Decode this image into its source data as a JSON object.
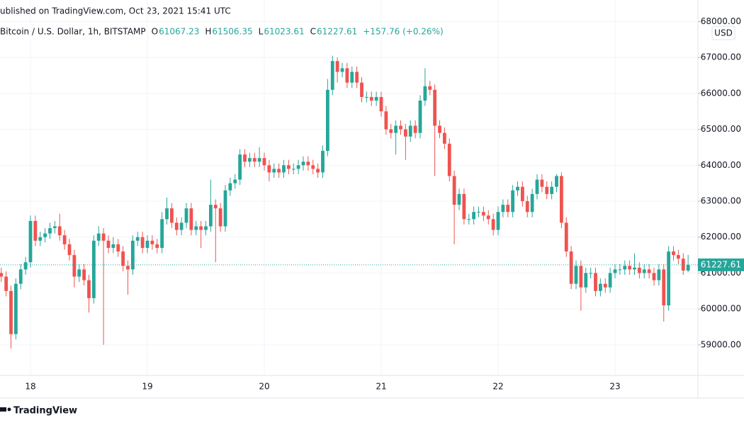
{
  "header": {
    "published": "ublished on TradingView.com, Oct 23, 2021 15:41 UTC"
  },
  "footer": {
    "brand": "TradingView"
  },
  "chart_data": {
    "type": "candlestick",
    "title": "Bitcoin / U.S. Dollar, 1h, BITSTAMP",
    "ohlc_letters": [
      "O",
      "H",
      "L",
      "C"
    ],
    "change_label": "+157.76 (+0.26%)",
    "currency": "USD",
    "up_color": "#26a69a",
    "down_color": "#ef5350",
    "grid": true,
    "ylim": [
      58150,
      68600
    ],
    "yticks": [
      {
        "value": 59000,
        "label": "59000.00"
      },
      {
        "value": 60000,
        "label": "60000.00"
      },
      {
        "value": 61000,
        "label": "61000.00"
      },
      {
        "value": 62000,
        "label": "62000.00"
      },
      {
        "value": 63000,
        "label": "63000.00"
      },
      {
        "value": 64000,
        "label": "64000.00"
      },
      {
        "value": 65000,
        "label": "65000.00"
      },
      {
        "value": 66000,
        "label": "66000.00"
      },
      {
        "value": 67000,
        "label": "67000.00"
      },
      {
        "value": 68000,
        "label": "68000.00"
      }
    ],
    "categories": [
      null,
      null,
      null,
      null,
      null,
      null,
      "18",
      null,
      null,
      null,
      null,
      null,
      null,
      null,
      null,
      null,
      null,
      null,
      null,
      null,
      null,
      null,
      null,
      null,
      null,
      null,
      null,
      null,
      null,
      null,
      "19",
      null,
      null,
      null,
      null,
      null,
      null,
      null,
      null,
      null,
      null,
      null,
      null,
      null,
      null,
      null,
      null,
      null,
      null,
      null,
      null,
      null,
      null,
      null,
      "20",
      null,
      null,
      null,
      null,
      null,
      null,
      null,
      null,
      null,
      null,
      null,
      null,
      null,
      null,
      null,
      null,
      null,
      null,
      null,
      null,
      null,
      null,
      null,
      "21",
      null,
      null,
      null,
      null,
      null,
      null,
      null,
      null,
      null,
      null,
      null,
      null,
      null,
      null,
      null,
      null,
      null,
      null,
      null,
      null,
      null,
      null,
      null,
      "22",
      null,
      null,
      null,
      null,
      null,
      null,
      null,
      null,
      null,
      null,
      null,
      null,
      null,
      null,
      null,
      null,
      null,
      null,
      null,
      null,
      null,
      null,
      null,
      "23",
      null,
      null,
      null,
      null,
      null,
      null,
      null,
      null,
      null,
      null,
      null,
      null,
      null,
      null,
      null
    ],
    "series": {
      "open": [
        61000,
        60900,
        60500,
        59300,
        60700,
        61100,
        61300,
        62450,
        61900,
        62000,
        62100,
        62250,
        62300,
        62050,
        61800,
        61500,
        60900,
        61100,
        60800,
        60300,
        61900,
        62100,
        61900,
        61700,
        61800,
        61600,
        61200,
        61100,
        61900,
        62000,
        61700,
        61900,
        61800,
        61700,
        62500,
        62800,
        62400,
        62200,
        62400,
        62800,
        62200,
        62300,
        62200,
        62300,
        62900,
        62800,
        62300,
        63300,
        63500,
        63600,
        64300,
        64100,
        64200,
        64100,
        64200,
        64000,
        63800,
        63900,
        63800,
        64000,
        63900,
        63900,
        64000,
        64100,
        64000,
        63900,
        63800,
        64400,
        66100,
        66900,
        66600,
        66700,
        66300,
        66600,
        66300,
        65900,
        65900,
        65800,
        65900,
        65500,
        65000,
        64900,
        65100,
        65000,
        64800,
        65100,
        64900,
        65800,
        66200,
        66100,
        65100,
        64900,
        64600,
        63700,
        62900,
        63200,
        62500,
        62500,
        62700,
        62700,
        62600,
        62500,
        62200,
        62700,
        62900,
        62700,
        63300,
        63400,
        63000,
        62700,
        63200,
        63600,
        63400,
        63200,
        63400,
        63700,
        62400,
        61600,
        60700,
        61200,
        60600,
        61000,
        61000,
        60500,
        60700,
        60600,
        61000,
        61100,
        61100,
        61200,
        61100,
        61150,
        61000,
        61100,
        61000,
        60800,
        61100,
        60100,
        61600,
        61500,
        61400,
        61067.23
      ],
      "high": [
        61150,
        61050,
        60650,
        60850,
        61250,
        61450,
        62600,
        62600,
        62150,
        62250,
        62400,
        62450,
        62650,
        62200,
        61950,
        61650,
        61250,
        61250,
        60950,
        62050,
        62300,
        62250,
        62050,
        62000,
        61950,
        61750,
        61350,
        62050,
        62150,
        62150,
        62050,
        62050,
        61950,
        62700,
        63100,
        62950,
        62550,
        62550,
        62950,
        62950,
        62450,
        62450,
        62450,
        63600,
        63050,
        62950,
        63450,
        63650,
        63750,
        64450,
        64450,
        64350,
        64350,
        64500,
        64350,
        64150,
        64050,
        64050,
        64150,
        64150,
        64050,
        64150,
        64250,
        64250,
        64150,
        64050,
        64550,
        66400,
        67050,
        67000,
        66850,
        66850,
        66750,
        66750,
        66450,
        66050,
        66050,
        66050,
        66050,
        65650,
        65150,
        65250,
        65250,
        65150,
        65250,
        65250,
        65950,
        66700,
        66350,
        66250,
        65250,
        65050,
        64750,
        63850,
        63350,
        63350,
        62650,
        62850,
        62850,
        62850,
        62750,
        62650,
        62850,
        63050,
        63050,
        63450,
        63550,
        63550,
        63150,
        63350,
        63750,
        63750,
        63550,
        63550,
        63750,
        63800,
        62550,
        61750,
        61350,
        61350,
        61150,
        61150,
        61150,
        60850,
        60850,
        61150,
        61250,
        61250,
        61350,
        61350,
        61550,
        61300,
        61250,
        61250,
        61150,
        61250,
        61250,
        61750,
        61750,
        61650,
        61550,
        61506.35
      ],
      "low": [
        60750,
        60350,
        58900,
        59150,
        60550,
        60950,
        61150,
        61750,
        61750,
        61850,
        61950,
        62100,
        61900,
        61650,
        61350,
        60600,
        60750,
        60650,
        59900,
        60150,
        61750,
        59000,
        61550,
        61550,
        61450,
        61050,
        60400,
        60950,
        61750,
        61550,
        61550,
        61650,
        61550,
        61550,
        62350,
        62250,
        62050,
        62050,
        62250,
        62050,
        62050,
        61700,
        62050,
        62150,
        61300,
        62150,
        62150,
        63150,
        63350,
        63450,
        63950,
        63950,
        63950,
        63950,
        63850,
        63550,
        63650,
        63650,
        63650,
        63750,
        63750,
        63750,
        63850,
        63850,
        63750,
        63650,
        63650,
        64250,
        65950,
        66300,
        66450,
        66150,
        66150,
        66150,
        65750,
        65750,
        65650,
        65650,
        65350,
        64850,
        64750,
        64300,
        64850,
        64150,
        64650,
        64750,
        64750,
        65650,
        65950,
        63700,
        64750,
        64450,
        63550,
        61800,
        62750,
        62350,
        62350,
        62350,
        62550,
        62450,
        62350,
        62050,
        62050,
        62550,
        62550,
        62550,
        63150,
        62850,
        62550,
        62550,
        63050,
        63250,
        63050,
        63050,
        63250,
        62250,
        61450,
        60550,
        60550,
        59950,
        60450,
        60850,
        60350,
        60350,
        60450,
        60450,
        60850,
        60950,
        60950,
        60950,
        60950,
        60850,
        60850,
        60850,
        60650,
        60650,
        59650,
        59950,
        61350,
        61250,
        60950,
        61023.61
      ],
      "close": [
        60900,
        60500,
        59300,
        60700,
        61100,
        61300,
        62450,
        61900,
        62000,
        62100,
        62250,
        62300,
        62050,
        61800,
        61500,
        60900,
        61100,
        60800,
        60300,
        61900,
        62100,
        61900,
        61700,
        61800,
        61600,
        61200,
        61100,
        61900,
        62000,
        61700,
        61900,
        61800,
        61700,
        62500,
        62800,
        62400,
        62200,
        62400,
        62800,
        62200,
        62300,
        62200,
        62300,
        62900,
        62800,
        62300,
        63300,
        63500,
        63600,
        64300,
        64100,
        64200,
        64100,
        64200,
        64000,
        63800,
        63900,
        63800,
        64000,
        63900,
        63900,
        64000,
        64100,
        64000,
        63900,
        63800,
        64400,
        66100,
        66900,
        66600,
        66700,
        66300,
        66600,
        66300,
        65900,
        65900,
        65800,
        65900,
        65500,
        65000,
        64900,
        65100,
        65000,
        64800,
        65100,
        64900,
        65800,
        66200,
        66100,
        65100,
        64900,
        64600,
        63700,
        62900,
        63200,
        62500,
        62500,
        62700,
        62700,
        62600,
        62500,
        62200,
        62700,
        62900,
        62700,
        63300,
        63400,
        63000,
        62700,
        63200,
        63600,
        63400,
        63200,
        63400,
        63700,
        62400,
        61600,
        60700,
        61200,
        60600,
        61000,
        61000,
        60500,
        60700,
        60600,
        61000,
        61100,
        61100,
        61200,
        61100,
        61150,
        61000,
        61100,
        61000,
        60800,
        61100,
        60100,
        61600,
        61500,
        61400,
        61067.23,
        61227.61
      ]
    }
  }
}
